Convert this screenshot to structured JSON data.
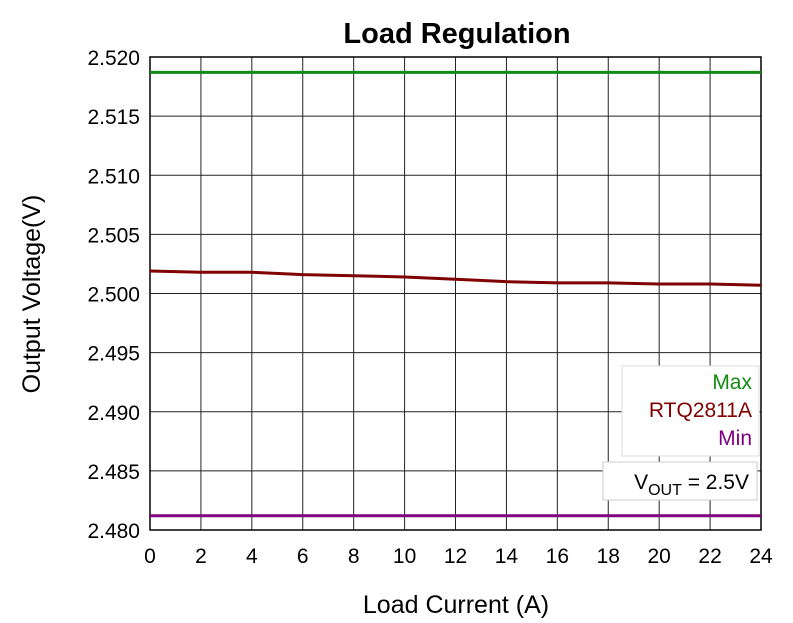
{
  "chart_data": {
    "type": "line",
    "title": "Load Regulation",
    "xlabel": "Load Current (A)",
    "ylabel": "Output Voltage(V)",
    "x": [
      0,
      2,
      4,
      6,
      8,
      10,
      12,
      14,
      16,
      18,
      20,
      22,
      24
    ],
    "series": [
      {
        "name": "Max",
        "color": "#138a13",
        "values": [
          2.5187,
          2.5187,
          2.5187,
          2.5187,
          2.5187,
          2.5187,
          2.5187,
          2.5187,
          2.5187,
          2.5187,
          2.5187,
          2.5187,
          2.5187
        ]
      },
      {
        "name": "RTQ2811A",
        "color": "#800000",
        "values": [
          2.5019,
          2.5018,
          2.5018,
          2.5016,
          2.5015,
          2.5014,
          2.5012,
          2.501,
          2.5009,
          2.5009,
          2.5008,
          2.5008,
          2.5007
        ]
      },
      {
        "name": "Min",
        "color": "#800080",
        "values": [
          2.4812,
          2.4812,
          2.4812,
          2.4812,
          2.4812,
          2.4812,
          2.4812,
          2.4812,
          2.4812,
          2.4812,
          2.4812,
          2.4812,
          2.4812
        ]
      }
    ],
    "xlim": [
      0,
      24
    ],
    "xticks": [
      0,
      2,
      4,
      6,
      8,
      10,
      12,
      14,
      16,
      18,
      20,
      22,
      24
    ],
    "ylim": [
      2.48,
      2.52
    ],
    "yticks": [
      {
        "value": 2.48,
        "label": "2.480"
      },
      {
        "value": 2.485,
        "label": "2.485"
      },
      {
        "value": 2.49,
        "label": "2.490"
      },
      {
        "value": 2.495,
        "label": "2.495"
      },
      {
        "value": 2.5,
        "label": "2.500"
      },
      {
        "value": 2.505,
        "label": "2.505"
      },
      {
        "value": 2.51,
        "label": "2.510"
      },
      {
        "value": 2.515,
        "label": "2.515"
      },
      {
        "value": 2.52,
        "label": "2.520"
      }
    ],
    "grid": true,
    "legend": "right",
    "annotation": {
      "main": "V",
      "sub": "OUT",
      "rest": " = 2.5V"
    }
  }
}
